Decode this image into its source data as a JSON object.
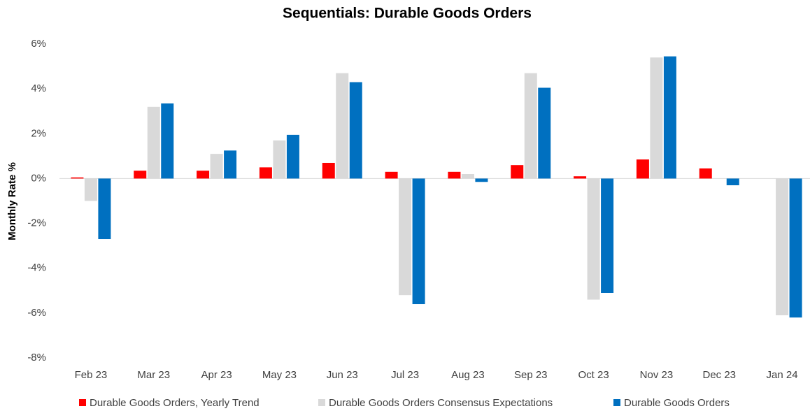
{
  "chart_data": {
    "type": "bar",
    "title": "Sequentials: Durable Goods Orders",
    "y_label": "Monthly Rate %",
    "categories": [
      "Feb 23",
      "Mar 23",
      "Apr 23",
      "May 23",
      "Jun 23",
      "Jul 23",
      "Aug 23",
      "Sep 23",
      "Oct 23",
      "Nov 23",
      "Dec 23",
      "Jan 24"
    ],
    "series": [
      {
        "name": "Durable Goods Orders, Yearly Trend",
        "color": "#ff0000",
        "values": [
          0.05,
          0.35,
          0.35,
          0.5,
          0.7,
          0.3,
          0.3,
          0.6,
          0.1,
          0.85,
          0.45,
          null
        ]
      },
      {
        "name": "Durable Goods Orders Consensus Expectations",
        "color": "#d9d9d9",
        "values": [
          -1.0,
          3.2,
          1.1,
          1.7,
          4.7,
          -5.2,
          0.2,
          4.7,
          -5.4,
          5.4,
          null,
          -6.1
        ]
      },
      {
        "name": "Durable Goods Orders",
        "color": "#0070c0",
        "values": [
          -2.7,
          3.35,
          1.25,
          1.95,
          4.3,
          -5.6,
          -0.15,
          4.05,
          -5.1,
          5.45,
          -0.3,
          -6.2
        ]
      }
    ],
    "ylim": [
      -8,
      6
    ],
    "yticks": [
      {
        "value": -8,
        "label": "-8%"
      },
      {
        "value": -6,
        "label": "-6%"
      },
      {
        "value": -4,
        "label": "-4%"
      },
      {
        "value": -2,
        "label": "-2%"
      },
      {
        "value": 0,
        "label": "0%"
      },
      {
        "value": 2,
        "label": "2%"
      },
      {
        "value": 4,
        "label": "4%"
      },
      {
        "value": 6,
        "label": "6%"
      }
    ],
    "grid": false,
    "legend": "bottom"
  }
}
